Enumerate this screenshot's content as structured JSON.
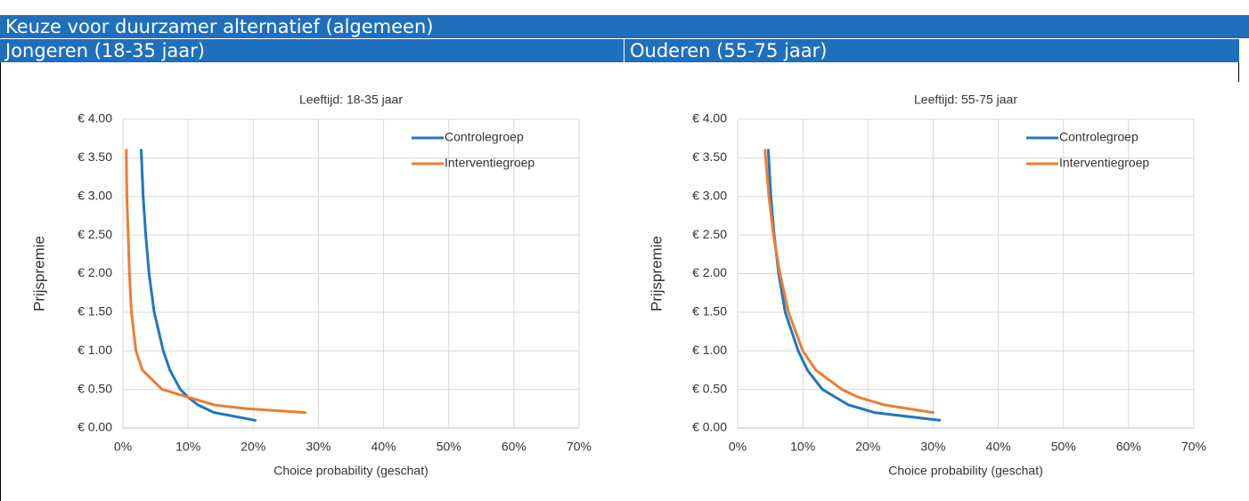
{
  "header": {
    "title": "Keuze voor duurzamer alternatief (algemeen)"
  },
  "columns": [
    "Jongeren (18-35 jaar)",
    "Ouderen (55-75 jaar)"
  ],
  "chart_data": [
    {
      "type": "line",
      "title": "Leeftijd: 18-35 jaar",
      "x_label": "Choice probability (geschat)",
      "y_label": "Prijspremie",
      "xlim": [
        0,
        70
      ],
      "ylim": [
        0,
        4
      ],
      "xticks": [
        {
          "value": 0,
          "label": "0%"
        },
        {
          "value": 10,
          "label": "10%"
        },
        {
          "value": 20,
          "label": "20%"
        },
        {
          "value": 30,
          "label": "30%"
        },
        {
          "value": 40,
          "label": "40%"
        },
        {
          "value": 50,
          "label": "50%"
        },
        {
          "value": 60,
          "label": "60%"
        },
        {
          "value": 70,
          "label": "70%"
        }
      ],
      "yticks": [
        {
          "value": 0,
          "label": "€ 0.00"
        },
        {
          "value": 0.5,
          "label": "€ 0.50"
        },
        {
          "value": 1,
          "label": "€ 1.00"
        },
        {
          "value": 1.5,
          "label": "€ 1.50"
        },
        {
          "value": 2,
          "label": "€ 2.00"
        },
        {
          "value": 2.5,
          "label": "€ 2.50"
        },
        {
          "value": 3,
          "label": "€ 3.00"
        },
        {
          "value": 3.5,
          "label": "€ 3.50"
        },
        {
          "value": 4,
          "label": "€ 4.00"
        }
      ],
      "grid": true,
      "legend": "top-right",
      "series": [
        {
          "name": "Controlegroep",
          "color": "#1f77c0",
          "x": [
            2.8,
            3.1,
            3.5,
            4.0,
            4.8,
            6.2,
            7.2,
            8.8,
            10,
            11.5,
            14,
            20.3
          ],
          "values": [
            3.6,
            3.0,
            2.5,
            2.0,
            1.5,
            1.0,
            0.75,
            0.5,
            0.4,
            0.3,
            0.2,
            0.1
          ]
        },
        {
          "name": "Interventiegroep",
          "color": "#ed7d31",
          "x": [
            0.5,
            0.6,
            0.8,
            1.0,
            1.3,
            2.0,
            3.0,
            6.0,
            10,
            14,
            19,
            28
          ],
          "values": [
            3.6,
            3.0,
            2.5,
            2.0,
            1.5,
            1.0,
            0.75,
            0.5,
            0.4,
            0.3,
            0.25,
            0.2
          ]
        }
      ]
    },
    {
      "type": "line",
      "title": "Leeftijd: 55-75 jaar",
      "x_label": "Choice probability (geschat)",
      "y_label": "Prijspremie",
      "xlim": [
        0,
        70
      ],
      "ylim": [
        0,
        4
      ],
      "xticks": [
        {
          "value": 0,
          "label": "0%"
        },
        {
          "value": 10,
          "label": "10%"
        },
        {
          "value": 20,
          "label": "20%"
        },
        {
          "value": 30,
          "label": "30%"
        },
        {
          "value": 40,
          "label": "40%"
        },
        {
          "value": 50,
          "label": "50%"
        },
        {
          "value": 60,
          "label": "60%"
        },
        {
          "value": 70,
          "label": "70%"
        }
      ],
      "yticks": [
        {
          "value": 0,
          "label": "€ 0.00"
        },
        {
          "value": 0.5,
          "label": "€ 0.50"
        },
        {
          "value": 1,
          "label": "€ 1.00"
        },
        {
          "value": 1.5,
          "label": "€ 1.50"
        },
        {
          "value": 2,
          "label": "€ 2.00"
        },
        {
          "value": 2.5,
          "label": "€ 2.50"
        },
        {
          "value": 3,
          "label": "€ 3.00"
        },
        {
          "value": 3.5,
          "label": "€ 3.50"
        },
        {
          "value": 4,
          "label": "€ 4.00"
        }
      ],
      "grid": true,
      "legend": "top-right",
      "series": [
        {
          "name": "Controlegroep",
          "color": "#1f77c0",
          "x": [
            4.7,
            5.1,
            5.6,
            6.3,
            7.3,
            9.3,
            10.7,
            13,
            17,
            21,
            31
          ],
          "values": [
            3.6,
            3.0,
            2.5,
            2.0,
            1.5,
            1.0,
            0.75,
            0.5,
            0.3,
            0.2,
            0.1
          ]
        },
        {
          "name": "Interventiegroep",
          "color": "#ed7d31",
          "x": [
            4.2,
            4.8,
            5.5,
            6.5,
            7.8,
            10,
            12,
            16,
            18.5,
            22.5,
            30
          ],
          "values": [
            3.6,
            3.0,
            2.5,
            2.0,
            1.5,
            1.0,
            0.75,
            0.5,
            0.4,
            0.3,
            0.2
          ]
        }
      ]
    }
  ]
}
